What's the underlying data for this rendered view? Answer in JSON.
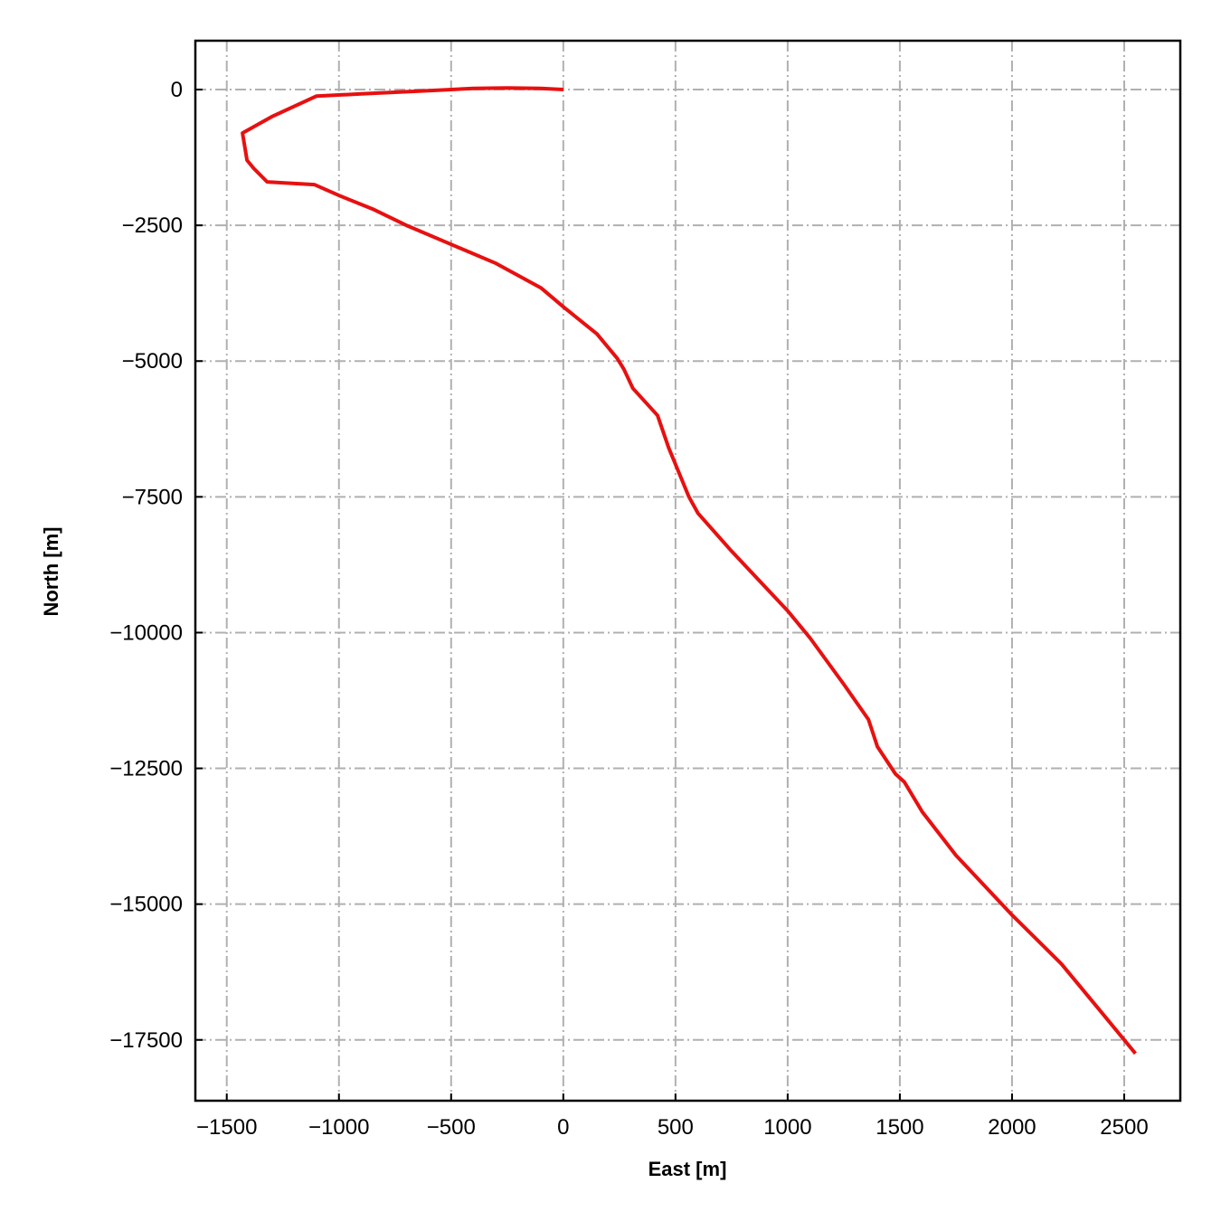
{
  "chart_data": {
    "type": "line",
    "title": "",
    "xlabel": "East [m]",
    "ylabel": "North [m]",
    "xlim": [
      -1640,
      2750
    ],
    "ylim": [
      -18620,
      900
    ],
    "grid": true,
    "xticks": [
      -1500,
      -1000,
      -500,
      0,
      500,
      1000,
      1500,
      2000,
      2500
    ],
    "xtick_labels": [
      "−1500",
      "−1000",
      "−500",
      "0",
      "500",
      "1000",
      "1500",
      "2000",
      "2500"
    ],
    "yticks": [
      0,
      -2500,
      -5000,
      -7500,
      -10000,
      -12500,
      -15000,
      -17500
    ],
    "ytick_labels": [
      "0",
      "−2500",
      "−5000",
      "−7500",
      "−10000",
      "−12500",
      "−15000",
      "−17500"
    ],
    "series": [
      {
        "color": "#e81010",
        "x": [
          0,
          -100,
          -250,
          -400,
          -600,
          -900,
          -1100,
          -1300,
          -1430,
          -1410,
          -1380,
          -1320,
          -1110,
          -1000,
          -850,
          -700,
          -500,
          -300,
          -100,
          0,
          150,
          240,
          270,
          310,
          420,
          470,
          560,
          600,
          750,
          1000,
          1100,
          1250,
          1360,
          1400,
          1480,
          1520,
          1600,
          1750,
          2000,
          2220,
          2400,
          2550
        ],
        "y": [
          0,
          20,
          30,
          20,
          -20,
          -80,
          -120,
          -500,
          -800,
          -1300,
          -1450,
          -1700,
          -1750,
          -1950,
          -2200,
          -2500,
          -2850,
          -3200,
          -3650,
          -4000,
          -4500,
          -4950,
          -5150,
          -5500,
          -6000,
          -6600,
          -7500,
          -7800,
          -8500,
          -9600,
          -10100,
          -10950,
          -11600,
          -12100,
          -12600,
          -12750,
          -13300,
          -14100,
          -15200,
          -16100,
          -17000,
          -17750
        ]
      }
    ]
  }
}
